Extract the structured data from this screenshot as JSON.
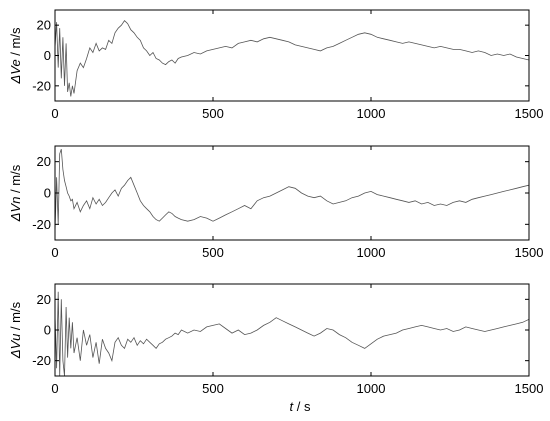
{
  "chart_data": [
    {
      "type": "line",
      "ylabel_sym": "ΔVe",
      "ylabel_unit": " / m/s",
      "xlim": [
        0,
        1500
      ],
      "ylim": [
        -30,
        30
      ],
      "xticks": [
        "0",
        "500",
        "1000",
        "1500"
      ],
      "yticks": [
        "20",
        "0",
        "-20"
      ],
      "grid": false,
      "series": [
        {
          "color": "#555555",
          "x": [
            0,
            5,
            10,
            15,
            20,
            25,
            30,
            35,
            40,
            45,
            50,
            55,
            60,
            70,
            80,
            90,
            100,
            110,
            120,
            130,
            140,
            150,
            160,
            170,
            180,
            190,
            200,
            210,
            220,
            230,
            240,
            250,
            260,
            270,
            280,
            290,
            300,
            310,
            320,
            330,
            340,
            350,
            360,
            370,
            380,
            390,
            400,
            420,
            440,
            460,
            480,
            500,
            520,
            540,
            560,
            580,
            600,
            620,
            640,
            660,
            680,
            700,
            720,
            740,
            760,
            780,
            800,
            820,
            840,
            860,
            880,
            900,
            920,
            940,
            960,
            980,
            1000,
            1020,
            1040,
            1060,
            1080,
            1100,
            1120,
            1140,
            1160,
            1180,
            1200,
            1220,
            1240,
            1260,
            1280,
            1300,
            1320,
            1340,
            1360,
            1380,
            1400,
            1420,
            1440,
            1460,
            1480,
            1500
          ],
          "y": [
            5,
            22,
            -8,
            18,
            -15,
            12,
            -20,
            8,
            -24,
            -18,
            -27,
            -20,
            -25,
            -10,
            -5,
            -8,
            -2,
            5,
            2,
            8,
            3,
            5,
            4,
            10,
            8,
            15,
            18,
            20,
            23,
            21,
            17,
            15,
            12,
            10,
            5,
            3,
            0,
            2,
            -2,
            -3,
            -5,
            -6,
            -4,
            -3,
            -5,
            -2,
            -1,
            0,
            2,
            1,
            3,
            4,
            5,
            6,
            5,
            8,
            9,
            10,
            9,
            11,
            12,
            11,
            10,
            9,
            7,
            6,
            5,
            4,
            3,
            5,
            6,
            8,
            10,
            12,
            14,
            15,
            14,
            12,
            11,
            10,
            9,
            8,
            9,
            8,
            7,
            6,
            5,
            6,
            5,
            4,
            4,
            3,
            2,
            3,
            2,
            0,
            1,
            0,
            1,
            -1,
            -2,
            -3
          ]
        }
      ]
    },
    {
      "type": "line",
      "ylabel_sym": "ΔVn",
      "ylabel_unit": " / m/s",
      "xlim": [
        0,
        1500
      ],
      "ylim": [
        -30,
        30
      ],
      "xticks": [
        "0",
        "500",
        "1000",
        "1500"
      ],
      "yticks": [
        "20",
        "0",
        "-20"
      ],
      "grid": false,
      "series": [
        {
          "color": "#555555",
          "x": [
            0,
            5,
            10,
            15,
            20,
            25,
            30,
            35,
            40,
            45,
            50,
            55,
            60,
            70,
            80,
            90,
            100,
            110,
            120,
            130,
            140,
            150,
            160,
            170,
            180,
            190,
            200,
            210,
            220,
            230,
            240,
            250,
            260,
            270,
            280,
            290,
            300,
            310,
            320,
            330,
            340,
            350,
            360,
            370,
            380,
            390,
            400,
            420,
            440,
            460,
            480,
            500,
            520,
            540,
            560,
            580,
            600,
            620,
            640,
            660,
            680,
            700,
            720,
            740,
            760,
            780,
            800,
            820,
            840,
            860,
            880,
            900,
            920,
            940,
            960,
            980,
            1000,
            1020,
            1040,
            1060,
            1080,
            1100,
            1120,
            1140,
            1160,
            1180,
            1200,
            1220,
            1240,
            1260,
            1280,
            1300,
            1320,
            1340,
            1360,
            1380,
            1400,
            1420,
            1440,
            1460,
            1480,
            1500
          ],
          "y": [
            -25,
            10,
            -20,
            25,
            28,
            15,
            8,
            4,
            0,
            -2,
            -5,
            -4,
            -10,
            -6,
            -12,
            -8,
            -5,
            -10,
            -3,
            -7,
            -4,
            -8,
            -6,
            -3,
            0,
            2,
            -2,
            3,
            5,
            8,
            10,
            5,
            0,
            -5,
            -8,
            -10,
            -12,
            -15,
            -17,
            -18,
            -16,
            -14,
            -12,
            -13,
            -15,
            -16,
            -17,
            -18,
            -17,
            -15,
            -16,
            -18,
            -16,
            -14,
            -12,
            -10,
            -8,
            -10,
            -5,
            -3,
            -2,
            0,
            2,
            4,
            3,
            0,
            -2,
            -3,
            -2,
            -5,
            -7,
            -6,
            -5,
            -3,
            -2,
            0,
            1,
            -1,
            -2,
            -3,
            -4,
            -5,
            -6,
            -5,
            -7,
            -6,
            -8,
            -7,
            -8,
            -6,
            -5,
            -6,
            -4,
            -3,
            -2,
            -1,
            0,
            1,
            2,
            3,
            4,
            5
          ]
        }
      ]
    },
    {
      "type": "line",
      "ylabel_sym": "ΔVu",
      "ylabel_unit": " / m/s",
      "xlim": [
        0,
        1500
      ],
      "ylim": [
        -30,
        30
      ],
      "xticks": [
        "0",
        "500",
        "1000",
        "1500"
      ],
      "xlabel_sym": "t",
      "xlabel_unit": " / s",
      "yticks": [
        "20",
        "0",
        "-20"
      ],
      "grid": false,
      "series": [
        {
          "color": "#555555",
          "x": [
            0,
            5,
            10,
            15,
            20,
            25,
            30,
            35,
            40,
            45,
            50,
            55,
            60,
            70,
            80,
            90,
            100,
            110,
            120,
            130,
            140,
            150,
            160,
            170,
            180,
            190,
            200,
            210,
            220,
            230,
            240,
            250,
            260,
            270,
            280,
            290,
            300,
            310,
            320,
            330,
            340,
            350,
            360,
            370,
            380,
            390,
            400,
            420,
            440,
            460,
            480,
            500,
            520,
            540,
            560,
            580,
            600,
            620,
            640,
            660,
            680,
            700,
            720,
            740,
            760,
            780,
            800,
            820,
            840,
            860,
            880,
            900,
            920,
            940,
            960,
            980,
            1000,
            1020,
            1040,
            1060,
            1080,
            1100,
            1120,
            1140,
            1160,
            1180,
            1200,
            1220,
            1240,
            1260,
            1280,
            1300,
            1320,
            1340,
            1360,
            1380,
            1400,
            1420,
            1440,
            1460,
            1480,
            1500
          ],
          "y": [
            10,
            -25,
            25,
            -30,
            20,
            -20,
            -30,
            15,
            -18,
            8,
            -12,
            5,
            -15,
            -5,
            -20,
            0,
            -10,
            -3,
            -18,
            -8,
            -22,
            -6,
            -12,
            -15,
            -20,
            -8,
            -5,
            -10,
            -12,
            -6,
            -8,
            -5,
            -10,
            -7,
            -9,
            -6,
            -8,
            -10,
            -12,
            -9,
            -8,
            -6,
            -5,
            -4,
            -2,
            -3,
            0,
            -2,
            0,
            -1,
            2,
            3,
            4,
            1,
            -2,
            0,
            -3,
            -2,
            0,
            3,
            5,
            8,
            6,
            4,
            2,
            0,
            -2,
            -4,
            -2,
            1,
            0,
            -3,
            -5,
            -8,
            -10,
            -12,
            -9,
            -6,
            -4,
            -3,
            -2,
            0,
            1,
            2,
            3,
            2,
            1,
            0,
            1,
            -1,
            0,
            2,
            1,
            0,
            -1,
            0,
            1,
            2,
            3,
            4,
            5,
            7
          ]
        }
      ]
    }
  ]
}
